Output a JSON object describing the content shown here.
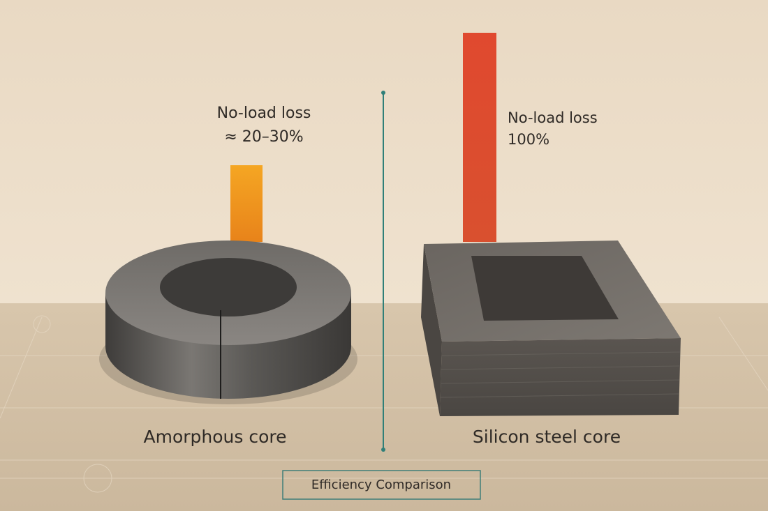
{
  "left": {
    "annotation": [
      "No-load loss",
      "≈ 20–30%"
    ],
    "label": "Amorphous core"
  },
  "right": {
    "annotation": [
      "No-load loss",
      "100%"
    ],
    "label": "Silicon steel core"
  },
  "footer": "Efficiency Comparison"
}
